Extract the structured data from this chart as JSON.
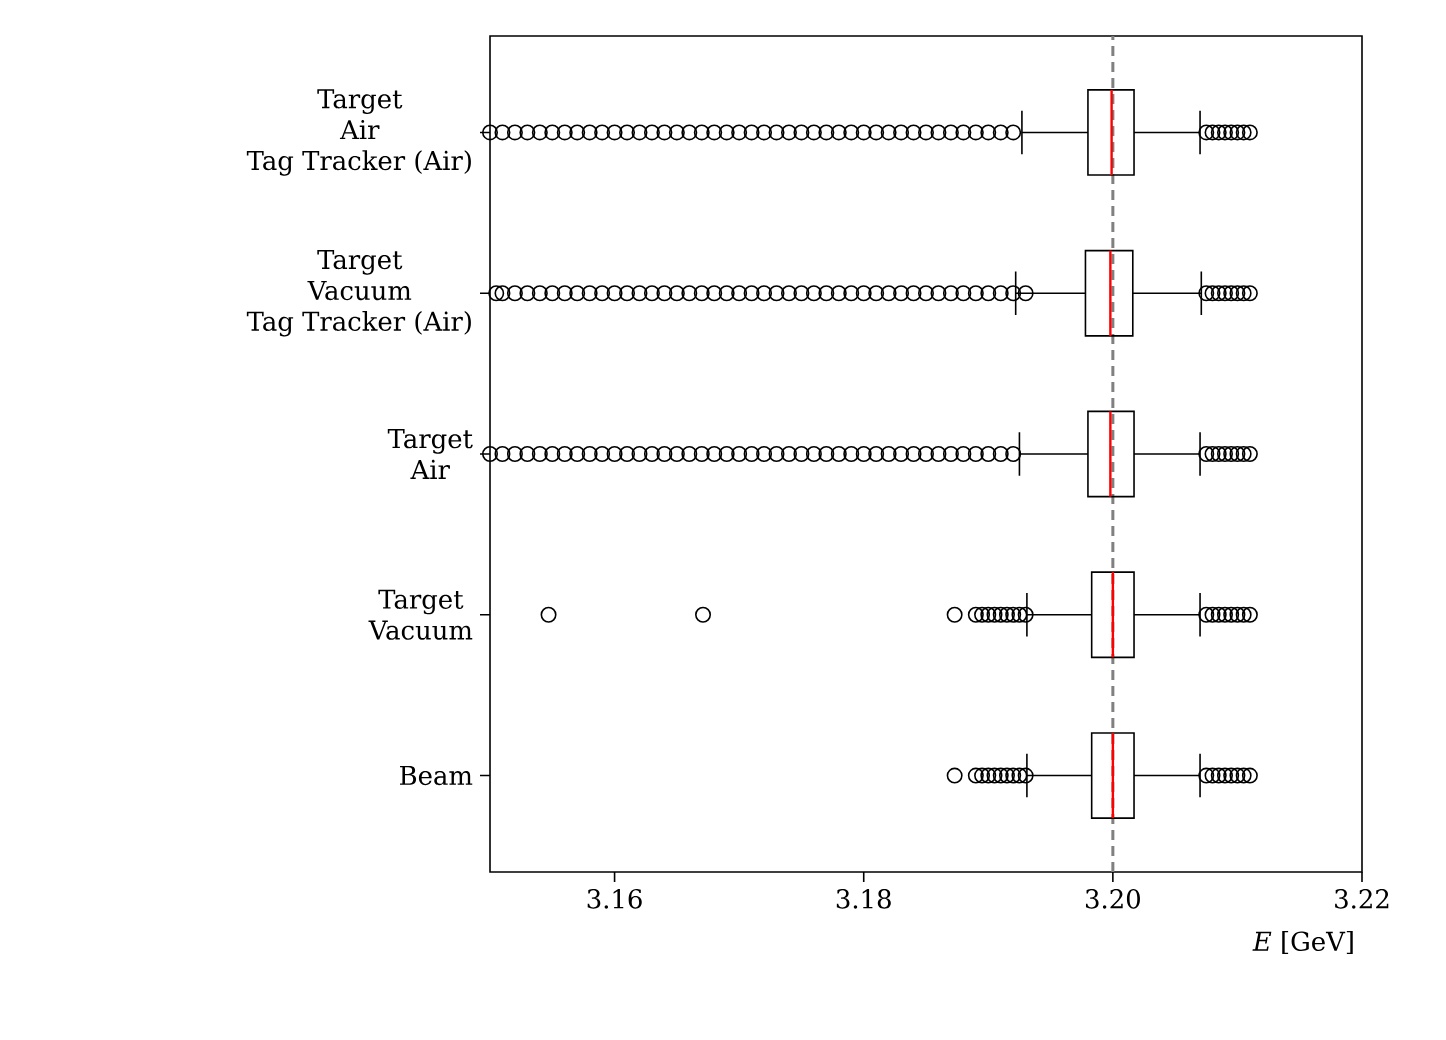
{
  "chart_data": {
    "type": "box",
    "orientation": "horizontal",
    "xlabel": "*E* [GeV]",
    "categories": [
      "Target\nAir\nTag Tracker (Air)",
      "Target\nVacuum\nTag Tracker (Air)",
      "Target\nAir",
      "Target\nVacuum",
      "Beam"
    ],
    "xlim": [
      3.15,
      3.22
    ],
    "xticks": [
      3.16,
      3.18,
      {
        "value": 3.2,
        "label": "3.20"
      },
      3.22
    ],
    "marker": "circle",
    "grid": false,
    "ref_lines": [
      {
        "axis": "x",
        "value": 3.2,
        "color": "#808080",
        "line_style": "dashed"
      }
    ],
    "series": [
      {
        "color": "#000000",
        "boxes": [
          {
            "low": 3.1927,
            "q1": 3.198,
            "median": 3.1999,
            "q3": 3.2017,
            "high": 3.207,
            "outliers": [
              3.15,
              3.151,
              3.152,
              3.153,
              3.154,
              3.155,
              3.156,
              3.157,
              3.158,
              3.159,
              3.16,
              3.161,
              3.162,
              3.163,
              3.164,
              3.165,
              3.166,
              3.167,
              3.168,
              3.169,
              3.17,
              3.171,
              3.172,
              3.173,
              3.174,
              3.175,
              3.176,
              3.177,
              3.178,
              3.179,
              3.18,
              3.181,
              3.182,
              3.183,
              3.184,
              3.185,
              3.186,
              3.187,
              3.188,
              3.189,
              3.19,
              3.191,
              3.192,
              3.2075,
              3.208,
              3.2085,
              3.209,
              3.2095,
              3.21,
              3.2105,
              3.211
            ]
          },
          {
            "low": 3.1922,
            "q1": 3.1978,
            "median": 3.1998,
            "q3": 3.2016,
            "high": 3.2071,
            "outliers": [
              3.1505,
              3.151,
              3.152,
              3.153,
              3.154,
              3.155,
              3.156,
              3.157,
              3.158,
              3.159,
              3.16,
              3.161,
              3.162,
              3.163,
              3.164,
              3.165,
              3.166,
              3.167,
              3.168,
              3.169,
              3.17,
              3.171,
              3.172,
              3.173,
              3.174,
              3.175,
              3.176,
              3.177,
              3.178,
              3.179,
              3.18,
              3.181,
              3.182,
              3.183,
              3.184,
              3.185,
              3.186,
              3.187,
              3.188,
              3.189,
              3.19,
              3.191,
              3.192,
              3.193,
              3.2075,
              3.208,
              3.2085,
              3.209,
              3.2095,
              3.21,
              3.2105,
              3.211
            ]
          },
          {
            "low": 3.1925,
            "q1": 3.198,
            "median": 3.1998,
            "q3": 3.2017,
            "high": 3.207,
            "outliers": [
              3.15,
              3.151,
              3.152,
              3.153,
              3.154,
              3.155,
              3.156,
              3.157,
              3.158,
              3.159,
              3.16,
              3.161,
              3.162,
              3.163,
              3.164,
              3.165,
              3.166,
              3.167,
              3.168,
              3.169,
              3.17,
              3.171,
              3.172,
              3.173,
              3.174,
              3.175,
              3.176,
              3.177,
              3.178,
              3.179,
              3.18,
              3.181,
              3.182,
              3.183,
              3.184,
              3.185,
              3.186,
              3.187,
              3.188,
              3.189,
              3.19,
              3.191,
              3.192,
              3.2075,
              3.208,
              3.2085,
              3.209,
              3.2095,
              3.21,
              3.2105,
              3.211
            ]
          },
          {
            "low": 3.1931,
            "q1": 3.1983,
            "median": 3.2,
            "q3": 3.2017,
            "high": 3.207,
            "outliers": [
              3.1547,
              3.1671,
              3.1873,
              3.189,
              3.1895,
              3.19,
              3.1905,
              3.191,
              3.1915,
              3.192,
              3.1925,
              3.193,
              3.2075,
              3.208,
              3.2085,
              3.209,
              3.2095,
              3.21,
              3.2105,
              3.211
            ]
          },
          {
            "low": 3.1931,
            "q1": 3.1983,
            "median": 3.2,
            "q3": 3.2017,
            "high": 3.207,
            "outliers": [
              3.1873,
              3.189,
              3.1895,
              3.19,
              3.1905,
              3.191,
              3.1915,
              3.192,
              3.1925,
              3.193,
              3.2075,
              3.208,
              3.2085,
              3.209,
              3.2095,
              3.21,
              3.2105,
              3.211
            ]
          }
        ]
      }
    ]
  }
}
